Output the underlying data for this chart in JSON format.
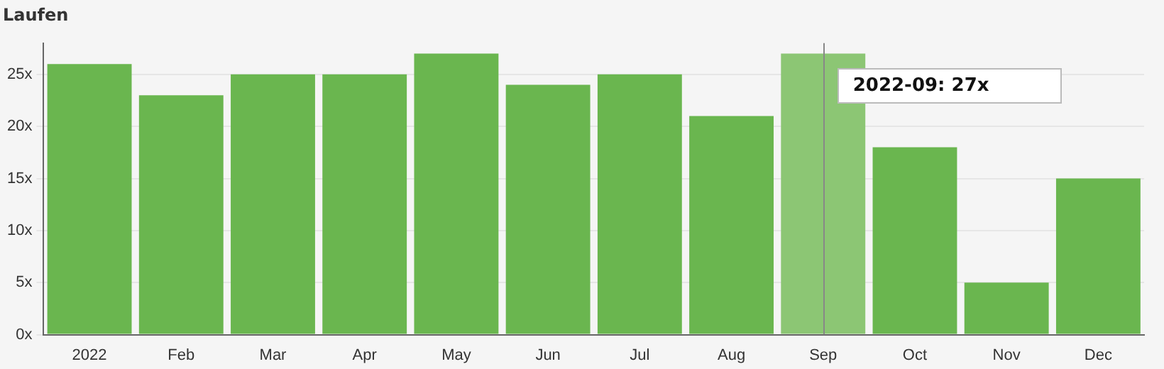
{
  "chart_data": {
    "type": "bar",
    "title": "Laufen",
    "categories": [
      "2022",
      "Feb",
      "Mar",
      "Apr",
      "May",
      "Jun",
      "Jul",
      "Aug",
      "Sep",
      "Oct",
      "Nov",
      "Dec"
    ],
    "values": [
      26,
      23,
      25,
      25,
      27,
      24,
      25,
      21,
      27,
      18,
      5,
      15
    ],
    "colors": [
      "#6ab64f",
      "#6ab64f",
      "#6ab64f",
      "#6ab64f",
      "#6ab64f",
      "#6ab64f",
      "#6ab64f",
      "#6ab64f",
      "#8cc674",
      "#6ab64f",
      "#6ab64f",
      "#6ab64f"
    ],
    "ylim": [
      0,
      28
    ],
    "yticks": [
      {
        "value": 0,
        "label": "0x"
      },
      {
        "value": 5,
        "label": "5x"
      },
      {
        "value": 10,
        "label": "10x"
      },
      {
        "value": 15,
        "label": "15x"
      },
      {
        "value": 20,
        "label": "20x"
      },
      {
        "value": 25,
        "label": "25x"
      }
    ],
    "grid": "y",
    "ref_lines": [
      {
        "axis": "x",
        "value": "Sep",
        "color": "#888888"
      }
    ],
    "annotations": [
      {
        "text": "2022-09: 27x",
        "x": "Sep",
        "y": 27
      }
    ]
  }
}
